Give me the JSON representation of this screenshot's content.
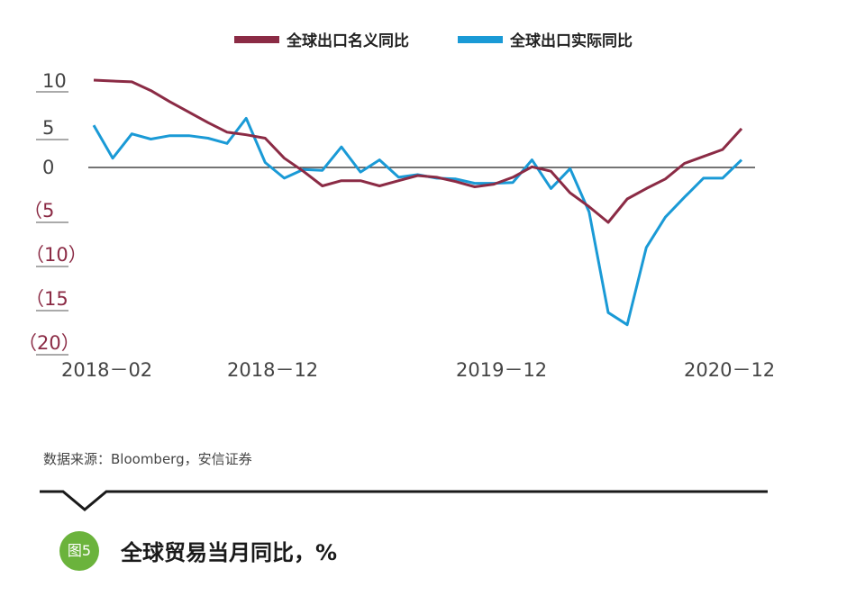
{
  "source_note": "数据来源：Bloomberg，安信证券",
  "figure_badge": "图5",
  "figure_title": "全球贸易当月同比，%",
  "colors": {
    "nominal": "#8b2b45",
    "real": "#1a9ad6",
    "negative_tick": "#8b2b45",
    "badge": "#6bb33c"
  },
  "chart_data": {
    "type": "line",
    "title": "",
    "legend_position": "top-center",
    "ylim": [
      -20,
      10
    ],
    "yticks": [
      10,
      5,
      0,
      -5,
      -10,
      -15,
      -20
    ],
    "ytick_labels": [
      "10",
      "5",
      "0",
      "（5",
      "（10）",
      "（15",
      "（20）"
    ],
    "xtick_labels": [
      "2018－02",
      "2018－12",
      "2019－12",
      "2020－12"
    ],
    "x": [
      "2018-02",
      "2018-03",
      "2018-04",
      "2018-05",
      "2018-06",
      "2018-07",
      "2018-08",
      "2018-09",
      "2018-10",
      "2018-11",
      "2018-12",
      "2019-01",
      "2019-02",
      "2019-03",
      "2019-04",
      "2019-05",
      "2019-06",
      "2019-07",
      "2019-08",
      "2019-09",
      "2019-10",
      "2019-11",
      "2019-12",
      "2020-01",
      "2020-02",
      "2020-03",
      "2020-04",
      "2020-05",
      "2020-06",
      "2020-07",
      "2020-08",
      "2020-09",
      "2020-10",
      "2020-11",
      "2020-12"
    ],
    "series": [
      {
        "name": "全球出口名义同比",
        "values": [
          10.0,
          9.9,
          9.8,
          8.8,
          7.5,
          6.3,
          5.1,
          4.0,
          3.7,
          3.3,
          1.0,
          -0.5,
          -2.2,
          -1.6,
          -1.6,
          -2.2,
          -1.6,
          -1.0,
          -1.2,
          -1.7,
          -2.3,
          -2.0,
          -1.2,
          0.0,
          -0.5,
          -3.0,
          -4.6,
          -6.4,
          -3.7,
          -2.5,
          -1.4,
          0.4,
          1.2,
          2.0,
          4.4
        ]
      },
      {
        "name": "全球出口实际同比",
        "values": [
          4.8,
          1.0,
          3.8,
          3.2,
          3.6,
          3.6,
          3.3,
          2.7,
          5.6,
          0.5,
          -1.3,
          -0.3,
          -0.4,
          2.3,
          -0.6,
          0.8,
          -1.2,
          -0.9,
          -1.3,
          -1.4,
          -1.9,
          -1.9,
          -1.8,
          0.8,
          -2.5,
          -0.2,
          -5.2,
          -16.8,
          -18.2,
          -9.3,
          -5.8,
          -3.5,
          -1.3,
          -1.3,
          0.8
        ]
      }
    ]
  }
}
